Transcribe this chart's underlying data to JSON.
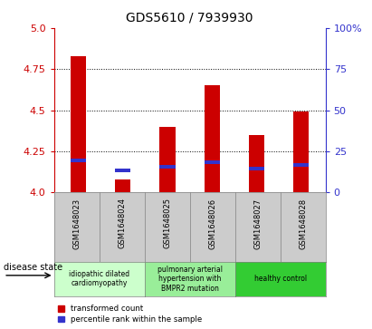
{
  "title": "GDS5610 / 7939930",
  "samples": [
    "GSM1648023",
    "GSM1648024",
    "GSM1648025",
    "GSM1648026",
    "GSM1648027",
    "GSM1648028"
  ],
  "transformed_counts": [
    4.83,
    4.08,
    4.4,
    4.65,
    4.35,
    4.49
  ],
  "percentile_ranks": [
    4.185,
    4.125,
    4.145,
    4.175,
    4.135,
    4.155
  ],
  "ylim": [
    4.0,
    5.0
  ],
  "yticks": [
    4.0,
    4.25,
    4.5,
    4.75,
    5.0
  ],
  "right_yticks": [
    0,
    25,
    50,
    75,
    100
  ],
  "bar_color": "#cc0000",
  "percentile_color": "#3333cc",
  "disease_groups": [
    {
      "label": "idiopathic dilated\ncardiomyopathy",
      "start": 0,
      "end": 1,
      "color": "#ccffcc"
    },
    {
      "label": "pulmonary arterial\nhypertension with\nBMPR2 mutation",
      "start": 2,
      "end": 3,
      "color": "#99ee99"
    },
    {
      "label": "healthy control",
      "start": 4,
      "end": 5,
      "color": "#33cc33"
    }
  ],
  "legend_red": "transformed count",
  "legend_blue": "percentile rank within the sample",
  "disease_state_label": "disease state",
  "tick_color_left": "#cc0000",
  "tick_color_right": "#3333cc",
  "bar_width": 0.35,
  "sample_box_color": "#cccccc",
  "plot_bg": "#ffffff"
}
